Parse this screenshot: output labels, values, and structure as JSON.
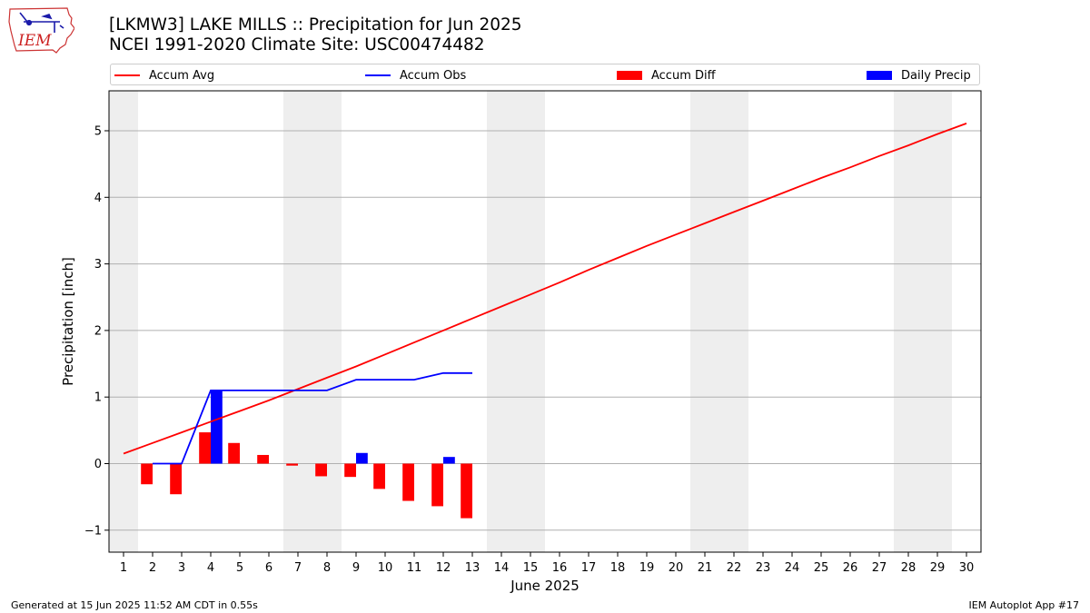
{
  "header": {
    "title_line1": "[LKMW3] LAKE MILLS :: Precipitation for Jun 2025",
    "title_line2": "NCEI 1991-2020 Climate Site: USC00474482"
  },
  "logo": {
    "text": "IEM",
    "icon": "iem-iowa-logo"
  },
  "legend": {
    "items": [
      {
        "label": "Accum Avg",
        "color": "#ff0000",
        "kind": "line"
      },
      {
        "label": "Accum Obs",
        "color": "#0000ff",
        "kind": "line"
      },
      {
        "label": "Accum Diff",
        "color": "#ff0000",
        "kind": "patch"
      },
      {
        "label": "Daily Precip",
        "color": "#0000ff",
        "kind": "patch"
      }
    ]
  },
  "footer": {
    "left": "Generated at 15 Jun 2025 11:52 AM CDT in 0.55s",
    "right": "IEM Autoplot App #17"
  },
  "chart_data": {
    "type": "line",
    "xlabel": "June 2025",
    "ylabel": "Precipitation [inch]",
    "xlim": [
      0.5,
      30.5
    ],
    "ylim": [
      -1.33,
      5.6
    ],
    "x_ticks": [
      1,
      2,
      3,
      4,
      5,
      6,
      7,
      8,
      9,
      10,
      11,
      12,
      13,
      14,
      15,
      16,
      17,
      18,
      19,
      20,
      21,
      22,
      23,
      24,
      25,
      26,
      27,
      28,
      29,
      30
    ],
    "y_ticks": [
      -1,
      0,
      1,
      2,
      3,
      4,
      5
    ],
    "y_tick_labels": [
      "−1",
      "0",
      "1",
      "2",
      "3",
      "4",
      "5"
    ],
    "grid": "horizontal",
    "weekend_shading": [
      [
        0.5,
        1.5
      ],
      [
        6.5,
        8.5
      ],
      [
        13.5,
        15.5
      ],
      [
        20.5,
        22.5
      ],
      [
        27.5,
        29.5
      ]
    ],
    "shading_color": "#eeeeee",
    "accum_avg": {
      "name": "Accum Avg",
      "color": "#ff0000",
      "x": [
        1,
        2,
        3,
        4,
        5,
        6,
        7,
        8,
        9,
        10,
        11,
        12,
        13,
        14,
        15,
        16,
        17,
        18,
        19,
        20,
        21,
        22,
        23,
        24,
        25,
        26,
        27,
        28,
        29,
        30
      ],
      "values": [
        0.15,
        0.31,
        0.47,
        0.63,
        0.79,
        0.95,
        1.12,
        1.29,
        1.46,
        1.64,
        1.82,
        2.0,
        2.18,
        2.36,
        2.54,
        2.72,
        2.91,
        3.09,
        3.27,
        3.44,
        3.61,
        3.78,
        3.95,
        4.12,
        4.29,
        4.45,
        4.62,
        4.78,
        4.95,
        5.11
      ]
    },
    "accum_obs": {
      "name": "Accum Obs",
      "color": "#0000ff",
      "x": [
        2,
        3,
        4,
        5,
        6,
        7,
        8,
        9,
        10,
        11,
        12,
        13
      ],
      "values": [
        0.0,
        0.0,
        1.1,
        1.1,
        1.1,
        1.1,
        1.1,
        1.26,
        1.26,
        1.26,
        1.36,
        1.36
      ]
    },
    "accum_diff": {
      "name": "Accum Diff",
      "color": "#ff0000",
      "x": [
        2,
        3,
        4,
        5,
        6,
        7,
        8,
        9,
        10,
        11,
        12,
        13
      ],
      "values": [
        -0.31,
        -0.46,
        0.47,
        0.31,
        0.13,
        -0.03,
        -0.19,
        -0.2,
        -0.38,
        -0.56,
        -0.64,
        -0.82
      ]
    },
    "daily_precip": {
      "name": "Daily Precip",
      "color": "#0000ff",
      "x": [
        4,
        9,
        12
      ],
      "values": [
        1.1,
        0.16,
        0.1
      ]
    }
  }
}
